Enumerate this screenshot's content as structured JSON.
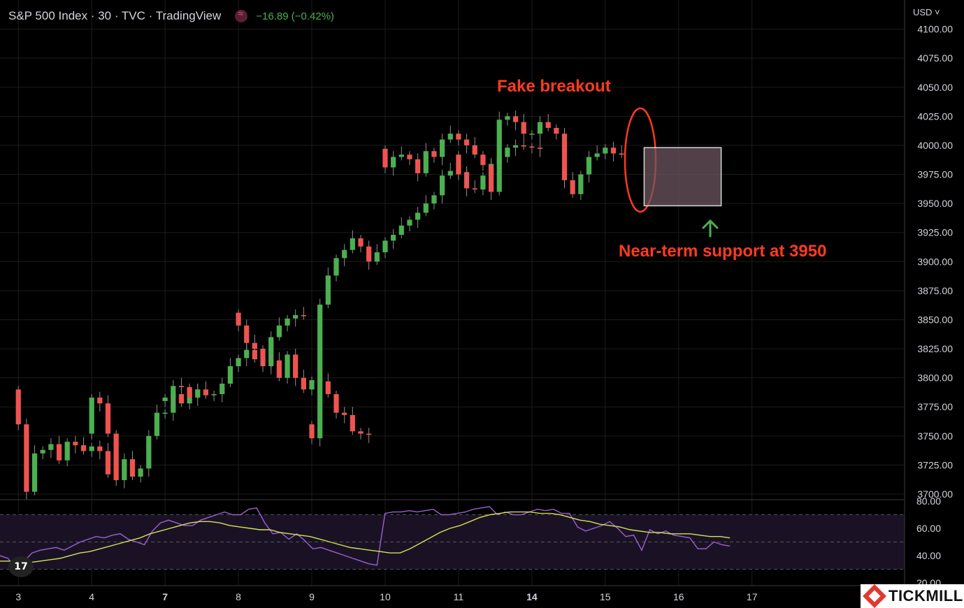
{
  "header": {
    "title": "S&P 500 Index · 30 · TVC · TradingView",
    "change": "−16.89 (−0.42%)"
  },
  "currency_label": "USD ˅",
  "annotations": {
    "fake_breakout": "Fake breakout",
    "support": "Near-term support at 3950"
  },
  "watermark": "TICKMILL",
  "colors": {
    "up": "#4caf50",
    "down": "#ef5350",
    "annotation": "#ff3b1f",
    "rsi_line": "#9c5fd4",
    "rsi_ma": "#d4e157",
    "support_box": "#6e5560"
  },
  "chart_data": [
    {
      "type": "candlestick",
      "title": "S&P 500 Index · 30 · TVC · TradingView",
      "y_ticks": [
        "4100.00",
        "4075.00",
        "4050.00",
        "4025.00",
        "4000.00",
        "3975.00",
        "3950.00",
        "3925.00",
        "3900.00",
        "3875.00",
        "3850.00",
        "3825.00",
        "3800.00",
        "3775.00",
        "3750.00",
        "3725.00",
        "3700.00"
      ],
      "ylim": [
        3697,
        4125
      ],
      "x_ticks": [
        {
          "label": "3",
          "x": 0.25
        },
        {
          "label": "4",
          "x": 1.25
        },
        {
          "label": "7",
          "x": 2.25
        },
        {
          "label": "8",
          "x": 3.25
        },
        {
          "label": "9",
          "x": 4.25
        },
        {
          "label": "10",
          "x": 5.25
        },
        {
          "label": "11",
          "x": 6.25
        },
        {
          "label": "14",
          "x": 7.25
        },
        {
          "label": "15",
          "x": 8.25
        },
        {
          "label": "16",
          "x": 9.25
        },
        {
          "label": "17",
          "x": 10.25
        }
      ],
      "xlim": [
        0,
        12.33
      ],
      "sessions": [
        {
          "start": 0.0,
          "opens": [
            3790,
            3760,
            3702,
            3735,
            3738,
            3743,
            3729,
            3745,
            3742,
            3737,
            3741,
            3737,
            3717
          ]
        },
        {
          "start": 1.0,
          "opens": [
            3752,
            3783,
            3778,
            3752,
            3712,
            3730,
            3715,
            3722,
            3750,
            3770,
            3770,
            3786,
            3778,
            3790
          ]
        },
        {
          "start": 2.0,
          "opens": [
            3780,
            3783,
            3793,
            3792,
            3783,
            3790,
            3785,
            3786,
            3795,
            3810,
            3817,
            3824,
            3816,
            3810,
            3835,
            3845,
            3851,
            3854
          ]
        },
        {
          "start": 3.0,
          "opens": [
            3856,
            3845,
            3830,
            3825,
            3815,
            3815,
            3800,
            3820,
            3800,
            3790,
            3798,
            3797,
            3786,
            3770,
            3768,
            3754,
            3752
          ]
        },
        {
          "start": 4.0,
          "opens": [
            3760,
            3748,
            3863,
            3888,
            3903,
            3910,
            3920,
            3913,
            3900,
            3908,
            3918,
            3923,
            3931,
            3936,
            3942,
            3950,
            3957,
            3974,
            3978,
            3977,
            3963,
            3962,
            3974,
            3984,
            3990,
            3998,
            4000,
            3999,
            3998
          ]
        },
        {
          "start": 5.0,
          "opens": [
            3997,
            3981,
            3990,
            3992,
            3988,
            3976,
            3995,
            3990,
            4005,
            4010,
            4005,
            4000,
            3992,
            3983,
            3960,
            4022,
            4025,
            4020,
            4010,
            4010,
            4020,
            4015,
            4010,
            3970,
            3958,
            3975,
            3990,
            3993,
            3998,
            3993
          ]
        },
        {
          "start": 6.0,
          "opens": [
            3992,
            3975
          ]
        }
      ],
      "support_level": 3950
    },
    {
      "type": "line",
      "title": "RSI",
      "y_ticks": [
        "80.00",
        "60.00",
        "40.00",
        "20.00"
      ],
      "ylim": [
        18,
        80
      ],
      "band": [
        30,
        70
      ],
      "series": [
        {
          "key": "rsi",
          "values": [
            40,
            38,
            30,
            36,
            42,
            44,
            45,
            46,
            44,
            47,
            50,
            52,
            54,
            53,
            55,
            56,
            52,
            50,
            48,
            58,
            64,
            66,
            64,
            62,
            62,
            66,
            68,
            70,
            72,
            70,
            70,
            74,
            75,
            64,
            56,
            57,
            52,
            56,
            51,
            45,
            46,
            44,
            42,
            40,
            38,
            36,
            34,
            33,
            71,
            72,
            72,
            73,
            72,
            73,
            74,
            70,
            70,
            71,
            72,
            74,
            75,
            76,
            70,
            72,
            70,
            70,
            72,
            74,
            73,
            74,
            71,
            71,
            61,
            58,
            60,
            62,
            65,
            60,
            54,
            55,
            44,
            59,
            56,
            58,
            55,
            54,
            53,
            45,
            45,
            50,
            48,
            47
          ]
        },
        {
          "key": "rsi_ma",
          "values": [
            36,
            36,
            36,
            35,
            36,
            37,
            38,
            40,
            42,
            43,
            45,
            47,
            49,
            51,
            53,
            56,
            58,
            60,
            62,
            64,
            65,
            65,
            64,
            62,
            61,
            60,
            59,
            59,
            57,
            56,
            55,
            54,
            52,
            50,
            48,
            46,
            45,
            44,
            43,
            42,
            42,
            45,
            49,
            53,
            57,
            60,
            62,
            65,
            68,
            70,
            71,
            72,
            72,
            72,
            71,
            71,
            70,
            68,
            66,
            65,
            63,
            62,
            61,
            59,
            58,
            57,
            57,
            56,
            56,
            56,
            55,
            54,
            54,
            53
          ]
        }
      ]
    }
  ]
}
